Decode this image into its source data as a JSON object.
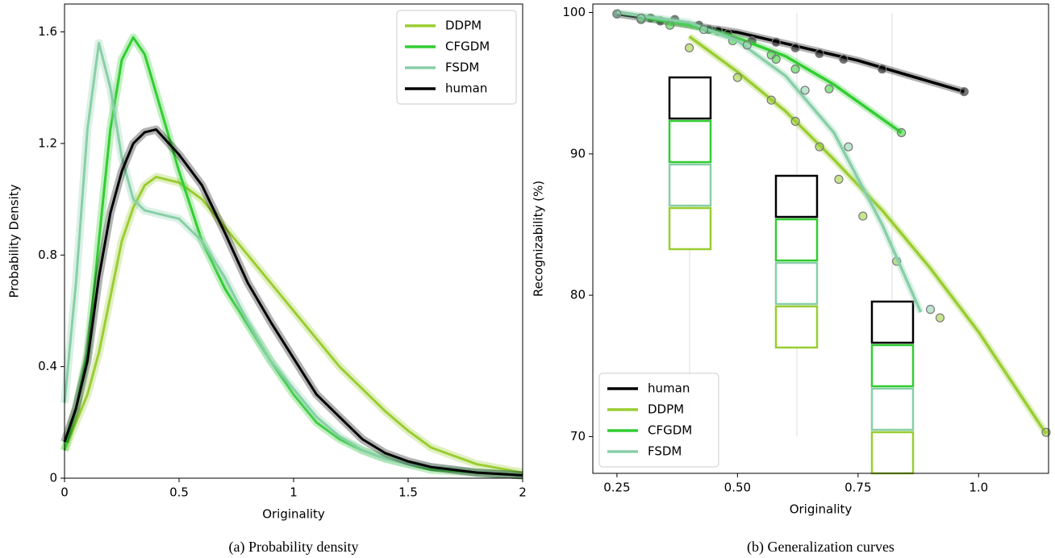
{
  "chart_data": [
    {
      "type": "line",
      "caption": "(a) Probability density",
      "xlabel": "Originality",
      "ylabel": "Probability Density",
      "xlim": [
        0,
        2
      ],
      "ylim": [
        0,
        1.7
      ],
      "xticks": [
        0,
        0.5,
        1,
        1.5,
        2
      ],
      "yticks": [
        0,
        0.4,
        0.8,
        1.2,
        1.6
      ],
      "legend": "upper right",
      "x": [
        0,
        0.05,
        0.1,
        0.15,
        0.2,
        0.25,
        0.3,
        0.35,
        0.4,
        0.5,
        0.6,
        0.7,
        0.8,
        0.9,
        1.0,
        1.1,
        1.2,
        1.3,
        1.4,
        1.5,
        1.6,
        1.8,
        2.0
      ],
      "series": [
        {
          "name": "DDPM",
          "color": "#9acd32",
          "values": [
            0.1,
            0.2,
            0.3,
            0.45,
            0.65,
            0.85,
            0.97,
            1.05,
            1.08,
            1.06,
            1.0,
            0.9,
            0.8,
            0.7,
            0.6,
            0.5,
            0.4,
            0.32,
            0.24,
            0.17,
            0.11,
            0.05,
            0.02
          ]
        },
        {
          "name": "CFGDM",
          "color": "#32cd32",
          "values": [
            0.1,
            0.25,
            0.45,
            0.85,
            1.25,
            1.5,
            1.58,
            1.52,
            1.38,
            1.1,
            0.85,
            0.68,
            0.55,
            0.42,
            0.3,
            0.2,
            0.14,
            0.1,
            0.07,
            0.05,
            0.03,
            0.02,
            0.01
          ]
        },
        {
          "name": "FSDM",
          "color": "#88cfa8",
          "values": [
            0.27,
            0.7,
            1.25,
            1.56,
            1.4,
            1.15,
            1.0,
            0.96,
            0.95,
            0.93,
            0.85,
            0.72,
            0.56,
            0.42,
            0.32,
            0.22,
            0.15,
            0.1,
            0.07,
            0.05,
            0.04,
            0.02,
            0.01
          ]
        },
        {
          "name": "human",
          "color": "#000000",
          "values": [
            0.13,
            0.25,
            0.42,
            0.72,
            0.95,
            1.1,
            1.2,
            1.24,
            1.25,
            1.16,
            1.05,
            0.88,
            0.7,
            0.56,
            0.43,
            0.3,
            0.22,
            0.14,
            0.09,
            0.06,
            0.04,
            0.02,
            0.01
          ]
        }
      ]
    },
    {
      "type": "scatter",
      "caption": "(b) Generalization curves",
      "xlabel": "Originality",
      "ylabel": "Recognizability (%)",
      "xlim": [
        0.2,
        1.145
      ],
      "ylim": [
        67.4,
        100.6
      ],
      "xticks": [
        0.25,
        {
          "value": 0.5,
          "label": "0.50"
        },
        0.75,
        {
          "value": 1.0,
          "label": "1.0"
        }
      ],
      "yticks": [
        70,
        80,
        90,
        100
      ],
      "legend": "lower left",
      "series": [
        {
          "name": "human",
          "color": "#000000",
          "x": [
            0.25,
            0.32,
            0.34,
            0.37,
            0.42,
            0.44,
            0.46,
            0.48,
            0.53,
            0.58,
            0.62,
            0.67,
            0.72,
            0.8,
            0.97
          ],
          "values": [
            99.9,
            99.6,
            99.4,
            99.5,
            99.1,
            98.8,
            98.7,
            98.5,
            98.0,
            97.9,
            97.5,
            97.1,
            96.7,
            96.0,
            94.4
          ],
          "trend": {
            "x": [
              0.25,
              0.5,
              0.75,
              0.97
            ],
            "values": [
              99.9,
              98.6,
              96.6,
              94.4
            ]
          }
        },
        {
          "name": "DDPM",
          "color": "#9acd32",
          "x": [
            0.4,
            0.5,
            0.57,
            0.62,
            0.67,
            0.71,
            0.76,
            0.83,
            0.92,
            1.14
          ],
          "values": [
            97.5,
            95.4,
            93.8,
            92.3,
            90.5,
            88.2,
            85.6,
            82.4,
            78.4,
            70.3
          ],
          "trend": {
            "x": [
              0.4,
              0.5,
              0.6,
              0.7,
              0.8,
              0.9,
              1.0,
              1.14
            ],
            "values": [
              98.3,
              95.8,
              93.0,
              89.6,
              86.0,
              81.9,
              77.4,
              70.2
            ]
          }
        },
        {
          "name": "CFGDM",
          "color": "#32cd32",
          "x": [
            0.3,
            0.36,
            0.49,
            0.57,
            0.58,
            0.62,
            0.69,
            0.84
          ],
          "values": [
            99.5,
            99.1,
            98.0,
            97.0,
            96.7,
            96.0,
            94.6,
            91.5
          ],
          "trend": {
            "x": [
              0.3,
              0.4,
              0.5,
              0.6,
              0.7,
              0.84
            ],
            "values": [
              99.7,
              99.1,
              98.2,
              96.9,
              94.9,
              91.5
            ]
          }
        },
        {
          "name": "FSDM",
          "color": "#88cfa8",
          "x": [
            0.25,
            0.3,
            0.43,
            0.52,
            0.64,
            0.73,
            0.9
          ],
          "values": [
            99.9,
            99.6,
            98.8,
            97.7,
            94.5,
            90.5,
            79.0
          ],
          "trend": {
            "x": [
              0.25,
              0.4,
              0.5,
              0.6,
              0.7,
              0.8,
              0.88
            ],
            "values": [
              100,
              99.3,
              98.0,
              95.5,
              91.5,
              85.0,
              78.8
            ]
          }
        }
      ]
    }
  ]
}
